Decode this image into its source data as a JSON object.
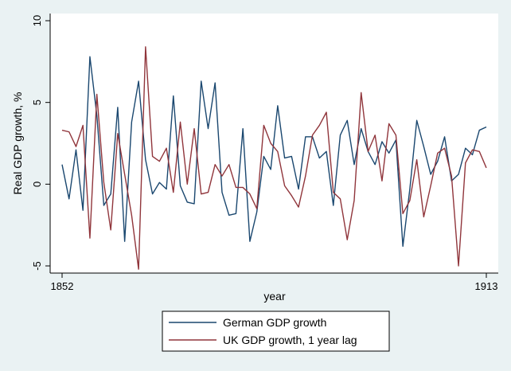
{
  "chart_data": {
    "type": "line",
    "xlabel": "year",
    "ylabel": "Real GDP growth, %",
    "xlim": [
      1852,
      1913
    ],
    "ylim": [
      -5,
      10
    ],
    "x_ticks": [
      1852,
      1913
    ],
    "y_ticks": [
      -5,
      0,
      5,
      10
    ],
    "legend_position": "bottom",
    "grid": false,
    "x": [
      1852,
      1853,
      1854,
      1855,
      1856,
      1857,
      1858,
      1859,
      1860,
      1861,
      1862,
      1863,
      1864,
      1865,
      1866,
      1867,
      1868,
      1869,
      1870,
      1871,
      1872,
      1873,
      1874,
      1875,
      1876,
      1877,
      1878,
      1879,
      1880,
      1881,
      1882,
      1883,
      1884,
      1885,
      1886,
      1887,
      1888,
      1889,
      1890,
      1891,
      1892,
      1893,
      1894,
      1895,
      1896,
      1897,
      1898,
      1899,
      1900,
      1901,
      1902,
      1903,
      1904,
      1905,
      1906,
      1907,
      1908,
      1909,
      1910,
      1911,
      1912,
      1913
    ],
    "series": [
      {
        "name": "German GDP growth",
        "color": "#1a476f",
        "values": [
          1.2,
          -0.9,
          2.1,
          -1.6,
          7.8,
          4.2,
          -1.3,
          -0.6,
          4.7,
          -3.5,
          3.8,
          6.3,
          1.5,
          -0.6,
          0.1,
          -0.3,
          5.4,
          -0.1,
          -1.1,
          -1.2,
          6.3,
          3.4,
          6.2,
          -0.5,
          -1.9,
          -1.8,
          3.4,
          -3.5,
          -1.7,
          1.7,
          0.9,
          4.8,
          1.6,
          1.7,
          -0.3,
          2.9,
          2.9,
          1.6,
          2.0,
          -1.3,
          3.0,
          3.9,
          1.2,
          3.4,
          2.0,
          1.2,
          2.6,
          1.9,
          2.7,
          -3.8,
          -0.3,
          3.9,
          2.3,
          0.6,
          1.4,
          2.9,
          0.2,
          0.6,
          2.2,
          1.8,
          3.3,
          3.5
        ]
      },
      {
        "name": "UK GDP growth, 1 year lag",
        "color": "#90353b",
        "values": [
          3.3,
          3.2,
          2.3,
          3.6,
          -3.3,
          5.5,
          0.1,
          -2.8,
          3.1,
          0.6,
          -1.9,
          -5.2,
          8.4,
          1.7,
          1.4,
          2.2,
          -0.5,
          3.8,
          0.0,
          3.4,
          -0.6,
          -0.5,
          1.2,
          0.5,
          1.2,
          -0.2,
          -0.2,
          -0.6,
          -1.5,
          3.6,
          2.5,
          2.0,
          -0.1,
          -0.7,
          -1.4,
          0.5,
          3.0,
          3.6,
          4.4,
          -0.5,
          -0.9,
          -3.4,
          -1.0,
          5.6,
          2.0,
          3.0,
          0.2,
          3.7,
          3.0,
          -1.8,
          -1.0,
          1.5,
          -2.0,
          -0.1,
          1.9,
          2.2,
          0.5,
          -5.0,
          1.3,
          2.1,
          2.0,
          1.0
        ]
      }
    ]
  }
}
